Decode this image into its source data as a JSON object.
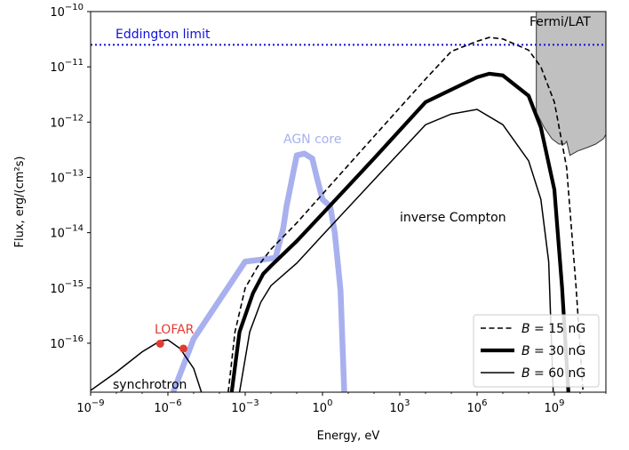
{
  "chart_data": {
    "type": "line",
    "xlabel": "Energy, eV",
    "ylabel": "Flux, erg/(cm²s)",
    "x_scale": "log",
    "y_scale": "log",
    "xlim": [
      1e-09,
      100000000000.0
    ],
    "ylim": [
      1.3e-17,
      1e-10
    ],
    "x_ticks": [
      {
        "value": 1e-09,
        "base": "10",
        "exp": "−9"
      },
      {
        "value": 1e-06,
        "base": "10",
        "exp": "−6"
      },
      {
        "value": 0.001,
        "base": "10",
        "exp": "−3"
      },
      {
        "value": 1,
        "base": "10",
        "exp": "0"
      },
      {
        "value": 1000.0,
        "base": "10",
        "exp": "3"
      },
      {
        "value": 1000000.0,
        "base": "10",
        "exp": "6"
      },
      {
        "value": 1000000000.0,
        "base": "10",
        "exp": "9"
      }
    ],
    "y_ticks": [
      {
        "value": 1e-16,
        "base": "10",
        "exp": "−16"
      },
      {
        "value": 1e-15,
        "base": "10",
        "exp": "−15"
      },
      {
        "value": 1e-14,
        "base": "10",
        "exp": "−14"
      },
      {
        "value": 1e-13,
        "base": "10",
        "exp": "−13"
      },
      {
        "value": 1e-12,
        "base": "10",
        "exp": "−12"
      },
      {
        "value": 1e-11,
        "base": "10",
        "exp": "−11"
      },
      {
        "value": 1e-10,
        "base": "10",
        "exp": "−10"
      }
    ],
    "grid": false,
    "legend_position": "bottom-right",
    "series": [
      {
        "name": "B = 15 nG",
        "legend": {
          "prefix": "B",
          "suffix": " = 15 nG"
        },
        "style": "dashed",
        "color": "#000000",
        "points": [
          [
            0.00022,
            1.3e-17
          ],
          [
            0.0004,
            1.6e-16
          ],
          [
            0.001,
            1e-15
          ],
          [
            0.003,
            2.4e-15
          ],
          [
            0.01,
            5e-15
          ],
          [
            0.1,
            1.5e-14
          ],
          [
            1,
            5e-14
          ],
          [
            100.0,
            5.5e-13
          ],
          [
            10000.0,
            6e-12
          ],
          [
            100000.0,
            1.9e-11
          ],
          [
            1000000.0,
            2.9e-11
          ],
          [
            3000000.0,
            3.4e-11
          ],
          [
            10000000.0,
            3.2e-11
          ],
          [
            100000000.0,
            2e-11
          ],
          [
            300000000.0,
            1e-11
          ],
          [
            1000000000.0,
            2.3e-12
          ],
          [
            3000000000.0,
            1.5e-13
          ],
          [
            7000000000.0,
            1e-15
          ],
          [
            13000000000.0,
            1.3e-17
          ]
        ]
      },
      {
        "name": "B = 30 nG",
        "legend": {
          "prefix": "B",
          "suffix": " = 30 nG"
        },
        "style": "thick",
        "color": "#000000",
        "points": [
          [
            0.0003,
            1.3e-17
          ],
          [
            0.0006,
            1.6e-16
          ],
          [
            0.002,
            8e-16
          ],
          [
            0.005,
            1.8e-15
          ],
          [
            0.01,
            2.5e-15
          ],
          [
            0.1,
            7e-15
          ],
          [
            1,
            2.2e-14
          ],
          [
            100.0,
            2.2e-13
          ],
          [
            10000.0,
            2.3e-12
          ],
          [
            1000000.0,
            6.5e-12
          ],
          [
            3000000.0,
            7.5e-12
          ],
          [
            10000000.0,
            7e-12
          ],
          [
            100000000.0,
            3e-12
          ],
          [
            300000000.0,
            8e-13
          ],
          [
            1000000000.0,
            6e-14
          ],
          [
            2000000000.0,
            1e-15
          ],
          [
            3500000000.0,
            1.3e-17
          ]
        ]
      },
      {
        "name": "B = 60 nG",
        "legend": {
          "prefix": "B",
          "suffix": " = 60 nG"
        },
        "style": "thin",
        "color": "#000000",
        "points": [
          [
            0.0006,
            1.3e-17
          ],
          [
            0.0015,
            1.6e-16
          ],
          [
            0.004,
            5.5e-16
          ],
          [
            0.01,
            1.1e-15
          ],
          [
            0.1,
            2.8e-15
          ],
          [
            1,
            9e-15
          ],
          [
            100.0,
            9e-14
          ],
          [
            10000.0,
            9e-13
          ],
          [
            100000.0,
            1.4e-12
          ],
          [
            1000000.0,
            1.7e-12
          ],
          [
            10000000.0,
            9e-13
          ],
          [
            100000000.0,
            2e-13
          ],
          [
            300000000.0,
            4e-14
          ],
          [
            600000000.0,
            3e-15
          ],
          [
            900000000.0,
            1.3e-17
          ]
        ]
      },
      {
        "name": "AGN core",
        "style": "band",
        "color": "#a8b0ee",
        "points": [
          [
            1.6e-06,
            1.3e-17
          ],
          [
            1e-05,
            1.2e-16
          ],
          [
            0.0001,
            6e-16
          ],
          [
            0.001,
            3e-15
          ],
          [
            0.015,
            3.5e-15
          ],
          [
            0.03,
            1.2e-14
          ],
          [
            0.04,
            3e-14
          ],
          [
            0.1,
            2.5e-13
          ],
          [
            0.2,
            2.7e-13
          ],
          [
            0.4,
            2.2e-13
          ],
          [
            0.6,
            1e-13
          ],
          [
            1,
            4e-14
          ],
          [
            2,
            3e-14
          ],
          [
            3,
            1e-14
          ],
          [
            5,
            9e-16
          ],
          [
            7,
            1.3e-17
          ]
        ]
      },
      {
        "name": "synchrotron",
        "style": "thin",
        "color": "#000000",
        "points": [
          [
            1e-09,
            1.4e-17
          ],
          [
            1e-08,
            3e-17
          ],
          [
            1e-07,
            7e-17
          ],
          [
            5e-07,
            1.1e-16
          ],
          [
            1e-06,
            1.15e-16
          ],
          [
            3e-06,
            8e-17
          ],
          [
            1e-05,
            3.5e-17
          ],
          [
            2e-05,
            1.3e-17
          ]
        ]
      }
    ],
    "lofar_points": [
      [
        5e-07,
        9.8e-17
      ],
      [
        4e-06,
        8e-17
      ]
    ],
    "eddington_limit": 2.5e-11,
    "fermi_lat": {
      "x_start": 200000000.0,
      "lower_edge": [
        [
          200000000.0,
          1.5e-12
        ],
        [
          400000000.0,
          8e-13
        ],
        [
          800000000.0,
          5e-13
        ],
        [
          1500000000.0,
          4e-13
        ],
        [
          2500000000.0,
          4e-13
        ],
        [
          3000000000.0,
          4.5e-13
        ],
        [
          4000000000.0,
          2.5e-13
        ],
        [
          8000000000.0,
          3e-13
        ],
        [
          20000000000.0,
          3.5e-13
        ],
        [
          40000000000.0,
          4e-13
        ],
        [
          80000000000.0,
          5e-13
        ],
        [
          100000000000.0,
          6e-13
        ]
      ]
    },
    "annotations": {
      "eddington": "Eddington limit",
      "fermi": "Fermi/LAT",
      "agn": "AGN core",
      "lofar": "LOFAR",
      "ic": "inverse Compton",
      "synchrotron": "synchrotron"
    },
    "colors": {
      "eddington": "#1010dd",
      "lofar": "#e03c31",
      "agn": "#a8b0ee",
      "fermi_fill": "#c0c0c0"
    }
  }
}
